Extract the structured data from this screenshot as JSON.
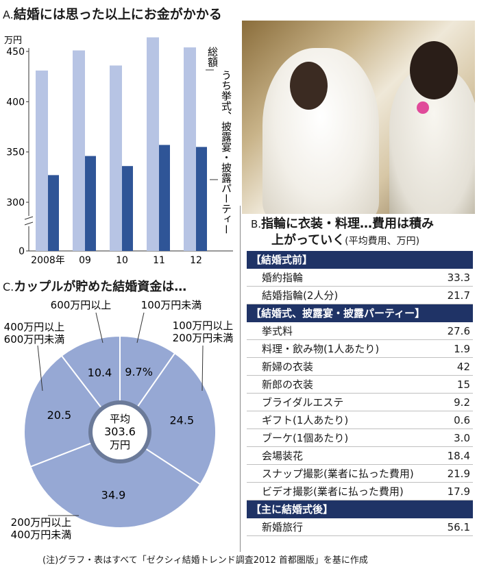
{
  "section_a": {
    "letter": "A.",
    "title": "結婚には思った以上にお金がかかる",
    "unit": "万円",
    "legend_total": "総額",
    "legend_part": "うち挙式、披露宴・披露パーティー"
  },
  "section_b": {
    "letter": "B.",
    "title_line1": "指輪に衣装・料理…費用は積み",
    "title_line2": "上がっていく",
    "title_note": "(平均費用、万円)",
    "sections": [
      {
        "header": "【結婚式前】",
        "rows": [
          {
            "label": "婚約指輪",
            "value": "33.3"
          },
          {
            "label": "結婚指輪(2人分)",
            "value": "21.7"
          }
        ]
      },
      {
        "header": "【結婚式、披露宴・披露パーティー】",
        "rows": [
          {
            "label": "挙式料",
            "value": "27.6"
          },
          {
            "label": "料理・飲み物(1人あたり)",
            "value": "1.9"
          },
          {
            "label": "新婦の衣装",
            "value": "42"
          },
          {
            "label": "新郎の衣装",
            "value": "15"
          },
          {
            "label": "ブライダルエステ",
            "value": "9.2"
          },
          {
            "label": "ギフト(1人あたり)",
            "value": "0.6"
          },
          {
            "label": "ブーケ(1個あたり)",
            "value": "3.0"
          },
          {
            "label": "会場装花",
            "value": "18.4"
          },
          {
            "label": "スナップ撮影(業者に払った費用)",
            "value": "21.9"
          },
          {
            "label": "ビデオ撮影(業者に払った費用)",
            "value": "17.9"
          }
        ]
      },
      {
        "header": "【主に結婚式後】",
        "rows": [
          {
            "label": "新婚旅行",
            "value": "56.1"
          }
        ]
      }
    ]
  },
  "section_c": {
    "letter": "C.",
    "title": "カップルが貯めた結婚資金は…",
    "center_line1": "平均",
    "center_line2": "303.6",
    "center_line3": "万円"
  },
  "footnote": "(注)グラフ・表はすべて「ゼクシィ結婚トレンド調査2012 首都圏版」を基に作成",
  "colors": {
    "bar_total": "#b7c4e4",
    "bar_part": "#2f5597",
    "pie_fill": "#96a8d4",
    "pie_ring": "#6b7a99",
    "header_bg": "#1f3366"
  },
  "chart_data": [
    {
      "type": "bar",
      "categories": [
        "2008年",
        "09",
        "10",
        "11",
        "12"
      ],
      "series": [
        {
          "name": "総額",
          "values": [
            431,
            451,
            436,
            464,
            454
          ]
        },
        {
          "name": "うち挙式、披露宴・披露パーティー",
          "values": [
            327,
            346,
            336,
            357,
            355
          ]
        }
      ],
      "ylabel": "万円",
      "ylim": [
        0,
        470
      ],
      "yticks": [
        "0",
        "300",
        "350",
        "400",
        "450"
      ],
      "axis_break": true
    },
    {
      "type": "pie",
      "categories": [
        "100万円未満",
        "100万円以上200万円未満",
        "200万円以上400万円未満",
        "400万円以上600万円未満",
        "600万円以上"
      ],
      "values": [
        9.7,
        24.5,
        34.9,
        20.5,
        10.4
      ],
      "value_labels": [
        "9.7%",
        "24.5",
        "34.9",
        "20.5",
        "10.4"
      ],
      "labels": [
        {
          "line1": "100万円未満",
          "line2": ""
        },
        {
          "line1": "100万円以上",
          "line2": "200万円未満"
        },
        {
          "line1": "200万円以上",
          "line2": "400万円未満"
        },
        {
          "line1": "400万円以上",
          "line2": "600万円未満"
        },
        {
          "line1": "600万円以上",
          "line2": ""
        }
      ]
    }
  ]
}
